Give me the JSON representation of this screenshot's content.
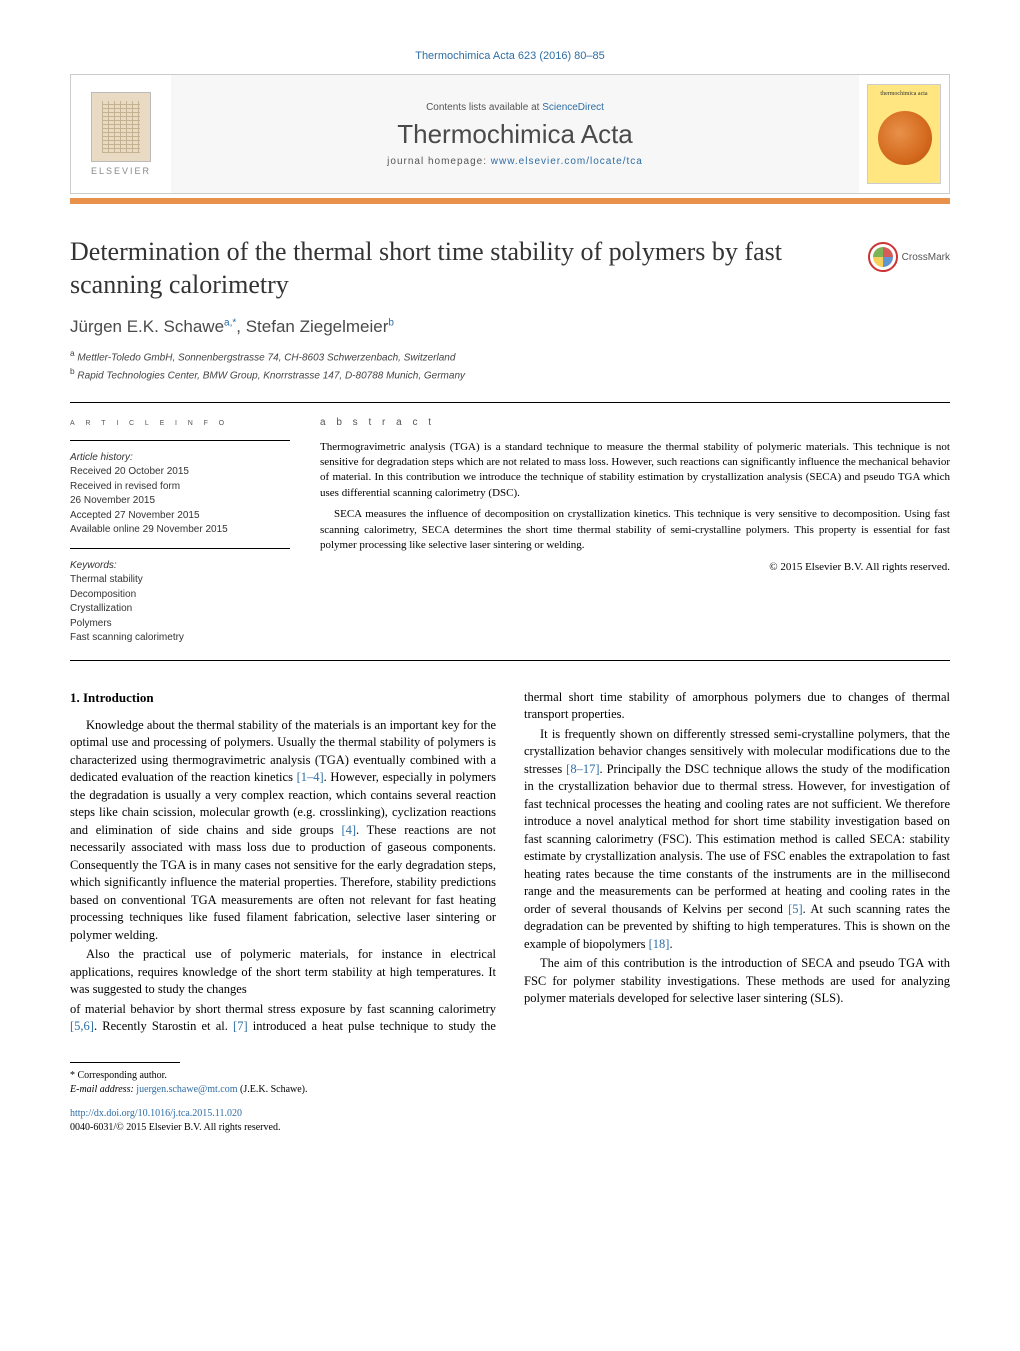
{
  "journal_ref": "Thermochimica Acta 623 (2016) 80–85",
  "header": {
    "contents_prefix": "Contents lists available at ",
    "contents_link": "ScienceDirect",
    "journal_name": "Thermochimica Acta",
    "homepage_prefix": "journal homepage: ",
    "homepage_link": "www.elsevier.com/locate/tca",
    "publisher_word": "ELSEVIER",
    "cover_label": "thermochimica acta"
  },
  "crossmark_label": "CrossMark",
  "title": "Determination of the thermal short time stability of polymers by fast scanning calorimetry",
  "authors_html": "Jürgen E.K. Schawe",
  "author1": "Jürgen E.K. Schawe",
  "author1_sup": "a,*",
  "author_sep": ", ",
  "author2": "Stefan Ziegelmeier",
  "author2_sup": "b",
  "affiliations": {
    "a": "Mettler-Toledo GmbH, Sonnenbergstrasse 74, CH-8603 Schwerzenbach, Switzerland",
    "b": "Rapid Technologies Center, BMW Group, Knorrstrasse 147, D-80788 Munich, Germany"
  },
  "article_info": {
    "heading": "a r t i c l e   i n f o",
    "history_label": "Article history:",
    "received": "Received 20 October 2015",
    "revised1": "Received in revised form",
    "revised2": "26 November 2015",
    "accepted": "Accepted 27 November 2015",
    "online": "Available online 29 November 2015",
    "keywords_label": "Keywords:",
    "kw1": "Thermal stability",
    "kw2": "Decomposition",
    "kw3": "Crystallization",
    "kw4": "Polymers",
    "kw5": "Fast scanning calorimetry"
  },
  "abstract": {
    "heading": "a b s t r a c t",
    "p1": "Thermogravimetric analysis (TGA) is a standard technique to measure the thermal stability of polymeric materials. This technique is not sensitive for degradation steps which are not related to mass loss. However, such reactions can significantly influence the mechanical behavior of material. In this contribution we introduce the technique of stability estimation by crystallization analysis (SECA) and pseudo TGA which uses differential scanning calorimetry (DSC).",
    "p2": "SECA measures the influence of decomposition on crystallization kinetics. This technique is very sensitive to decomposition. Using fast scanning calorimetry, SECA determines the short time thermal stability of semi-crystalline polymers. This property is essential for fast polymer processing like selective laser sintering or welding.",
    "copyright": "© 2015 Elsevier B.V. All rights reserved."
  },
  "body": {
    "h1": "1. Introduction",
    "p1a": "Knowledge about the thermal stability of the materials is an important key for the optimal use and processing of polymers. Usually the thermal stability of polymers is characterized using thermogravimetric analysis (TGA) eventually combined with a dedicated evaluation of the reaction kinetics ",
    "r1": "[1–4]",
    "p1b": ". However, especially in polymers the degradation is usually a very complex reaction, which contains several reaction steps like chain scission, molecular growth (e.g. crosslinking), cyclization reactions and elimination of side chains and side groups ",
    "r2": "[4]",
    "p1c": ". These reactions are not necessarily associated with mass loss due to production of gaseous components. Consequently the TGA is in many cases not sensitive for the early degradation steps, which significantly influence the material properties. Therefore, stability predictions based on conventional TGA measurements are often not relevant for fast heating processing techniques like fused filament fabrication, selective laser sintering or polymer welding.",
    "p2": "Also the practical use of polymeric materials, for instance in electrical applications, requires knowledge of the short term stability at high temperatures. It was suggested to study the changes",
    "p3a": "of material behavior by short thermal stress exposure by fast scanning calorimetry ",
    "r3": "[5,6]",
    "p3b": ". Recently Starostin et al. ",
    "r4": "[7]",
    "p3c": " introduced a heat pulse technique to study the thermal short time stability of amorphous polymers due to changes of thermal transport properties.",
    "p4a": "It is frequently shown on differently stressed semi-crystalline polymers, that the crystallization behavior changes sensitively with molecular modifications due to the stresses ",
    "r5": "[8–17]",
    "p4b": ". Principally the DSC technique allows the study of the modification in the crystallization behavior due to thermal stress. However, for investigation of fast technical processes the heating and cooling rates are not sufficient. We therefore introduce a novel analytical method for short time stability investigation based on fast scanning calorimetry (FSC). This estimation method is called SECA: stability estimate by crystallization analysis. The use of FSC enables the extrapolation to fast heating rates because the time constants of the instruments are in the millisecond range and the measurements can be performed at heating and cooling rates in the order of several thousands of Kelvins per second ",
    "r6": "[5]",
    "p4c": ". At such scanning rates the degradation can be prevented by shifting to high temperatures. This is shown on the example of biopolymers ",
    "r7": "[18]",
    "p4d": ".",
    "p5": "The aim of this contribution is the introduction of SECA and pseudo TGA with FSC for polymer stability investigations. These methods are used for analyzing polymer materials developed for selective laser sintering (SLS)."
  },
  "footnotes": {
    "corr_label": "Corresponding author.",
    "email_label": "E-mail address: ",
    "email": "juergen.schawe@mt.com",
    "email_suffix": " (J.E.K. Schawe)."
  },
  "doi": {
    "link": "http://dx.doi.org/10.1016/j.tca.2015.11.020",
    "issn_line": "0040-6031/© 2015 Elsevier B.V. All rights reserved."
  },
  "colors": {
    "link": "#2e6da4",
    "accent": "#e8914a",
    "text": "#000000",
    "muted": "#555555"
  }
}
